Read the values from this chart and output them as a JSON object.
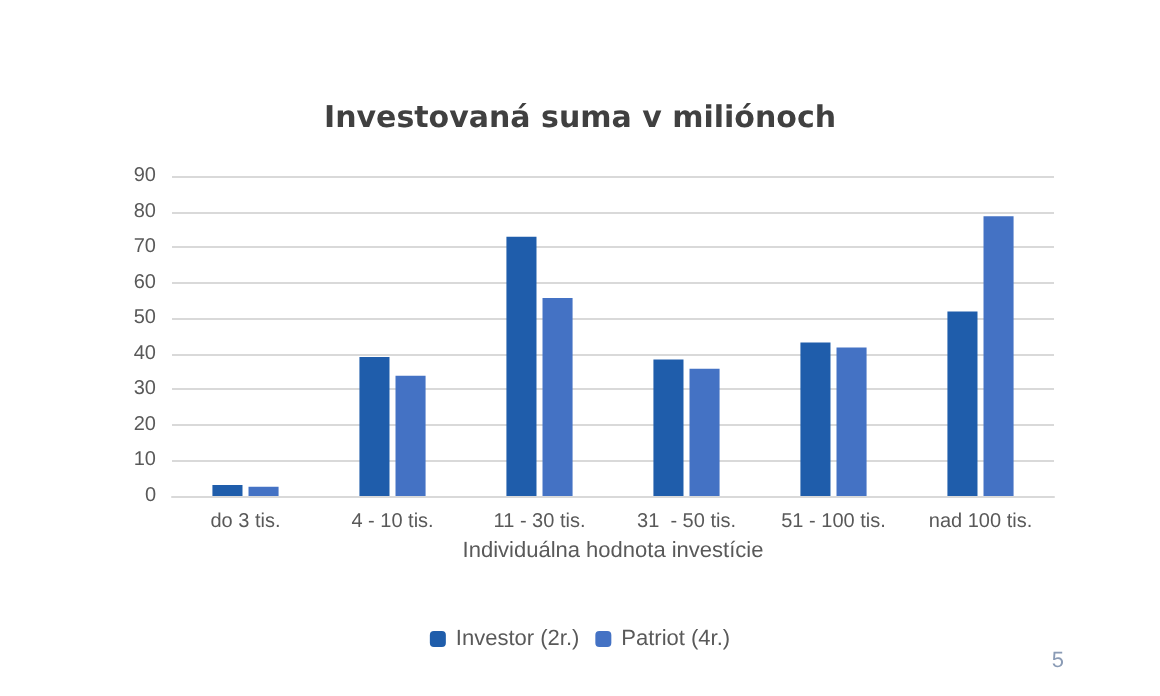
{
  "chart_data": {
    "type": "bar",
    "title": "Investovaná suma v miliónoch",
    "xlabel": "Individuálna hodnota investície",
    "categories": [
      "do 3 tis.",
      "4 - 10 tis.",
      "11 - 30 tis.",
      "31  - 50 tis.",
      "51 - 100 tis.",
      "nad 100 tis."
    ],
    "series": [
      {
        "name": "Investor (2r.)",
        "color": "#1f5dab",
        "values": [
          3.1,
          39.1,
          72.9,
          38.4,
          43.2,
          51.9
        ]
      },
      {
        "name": "Patriot (4r.)",
        "color": "#4472c4",
        "values": [
          2.6,
          33.8,
          55.7,
          35.8,
          41.8,
          78.7
        ]
      }
    ],
    "ylim": [
      0,
      90
    ],
    "yticks": [
      0,
      10,
      20,
      30,
      40,
      50,
      60,
      70,
      80,
      90
    ],
    "grid": "y",
    "legend": "bottom",
    "annotations": [
      "5"
    ]
  }
}
